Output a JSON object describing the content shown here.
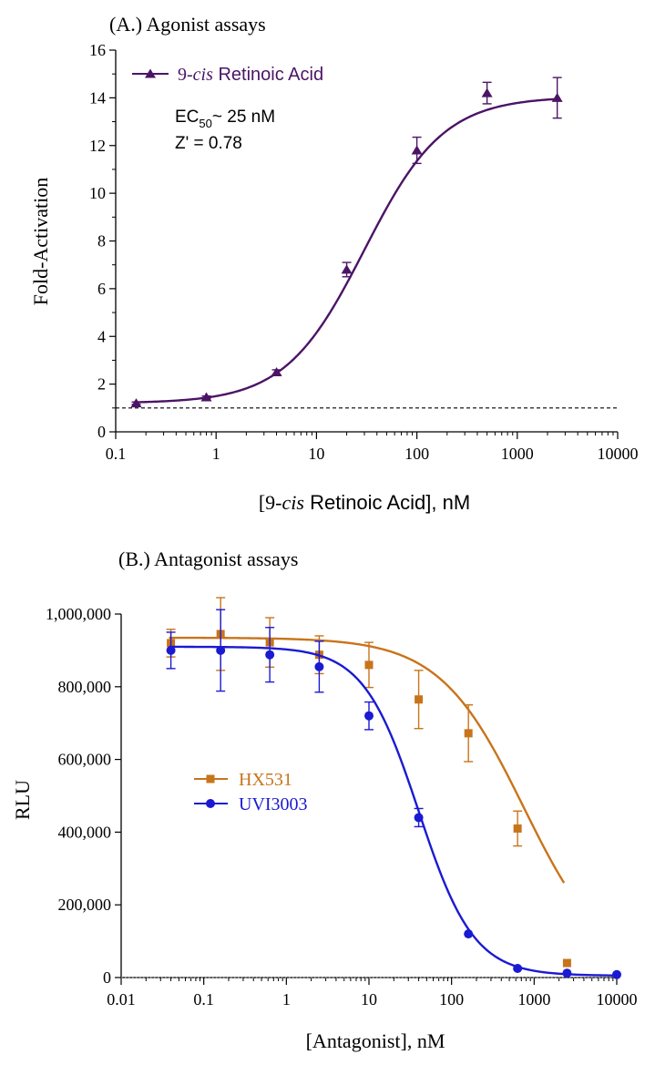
{
  "chart_data": [
    {
      "type": "scatter",
      "title": "(A.) Agonist assays",
      "xlabel_parts": [
        "[9-",
        "cis",
        " Retinoic Acid], nM"
      ],
      "ylabel": "Fold-Activation",
      "x_scale": "log",
      "xlim": [
        0.1,
        10000
      ],
      "ylim": [
        0,
        16
      ],
      "x_ticks": [
        0.1,
        1,
        10,
        100,
        1000,
        10000
      ],
      "x_tick_labels": [
        "0.1",
        "1",
        "10",
        "100",
        "1000",
        "10000"
      ],
      "y_ticks": [
        0,
        2,
        4,
        6,
        8,
        10,
        12,
        14,
        16
      ],
      "y_tick_labels": [
        "0",
        "2",
        "4",
        "6",
        "8",
        "10",
        "12",
        "14",
        "16"
      ],
      "legend_position": "top-left",
      "baseline": {
        "y": 1,
        "style": "dashed"
      },
      "annotations": [
        {
          "parts": [
            "EC",
            "50",
            "~ 25 nM"
          ]
        },
        {
          "parts": [
            "Z' = 0.78"
          ]
        }
      ],
      "series": [
        {
          "name_parts": [
            "9-",
            "cis",
            " Retinoic Acid"
          ],
          "color": "#4b1466",
          "marker": "triangle",
          "x": [
            0.16,
            0.8,
            4,
            20,
            100,
            500,
            2500
          ],
          "y": [
            1.2,
            1.45,
            2.5,
            6.8,
            11.8,
            14.2,
            14.0
          ],
          "error": [
            0.05,
            0.05,
            0.1,
            0.3,
            0.55,
            0.45,
            0.85
          ],
          "fit": {
            "model": "4PL",
            "bottom": 1.2,
            "top": 14.05,
            "ec50": 30,
            "hill": 1.1
          }
        }
      ]
    },
    {
      "type": "scatter",
      "title": "(B.) Antagonist assays",
      "xlabel": "[Antagonist], nM",
      "ylabel": "RLU",
      "x_scale": "log",
      "xlim": [
        0.01,
        10000
      ],
      "ylim": [
        0,
        1000000
      ],
      "x_ticks": [
        0.01,
        0.1,
        1,
        10,
        100,
        1000,
        10000
      ],
      "x_tick_labels": [
        "0.01",
        "0.1",
        "1",
        "10",
        "100",
        "1000",
        "10000"
      ],
      "y_ticks": [
        0,
        200000,
        400000,
        600000,
        800000,
        1000000
      ],
      "y_tick_labels": [
        "0",
        "200,000",
        "400,000",
        "600,000",
        "800,000",
        "1,000,000"
      ],
      "legend_position": "center-left",
      "baseline": {
        "y": 0,
        "style": "dotted"
      },
      "series": [
        {
          "name": "HX531",
          "color": "#c8741b",
          "marker": "square",
          "x": [
            0.04,
            0.16,
            0.63,
            2.5,
            10,
            40,
            160,
            630,
            2500
          ],
          "y": [
            920000,
            945000,
            922000,
            888000,
            860000,
            765000,
            672000,
            410000,
            40000
          ],
          "error": [
            38000,
            100000,
            68000,
            52000,
            62000,
            80000,
            78000,
            48000,
            0
          ],
          "fit": {
            "model": "4PL",
            "bottom": 0,
            "top": 935000,
            "ic50": 750,
            "hill": 0.85,
            "cutoff": 2300
          }
        },
        {
          "name": "UVI3003",
          "color": "#1a1ad2",
          "marker": "circle",
          "x": [
            0.04,
            0.16,
            0.63,
            2.5,
            10,
            40,
            160,
            630,
            2500,
            10000
          ],
          "y": [
            900000,
            900000,
            888000,
            855000,
            720000,
            440000,
            120000,
            25000,
            12000,
            8000
          ],
          "error": [
            50000,
            112000,
            75000,
            70000,
            38000,
            25000,
            0,
            0,
            0,
            0
          ],
          "fit": {
            "model": "4PL",
            "bottom": 5000,
            "top": 910000,
            "ic50": 40,
            "hill": 1.3
          }
        }
      ]
    }
  ]
}
